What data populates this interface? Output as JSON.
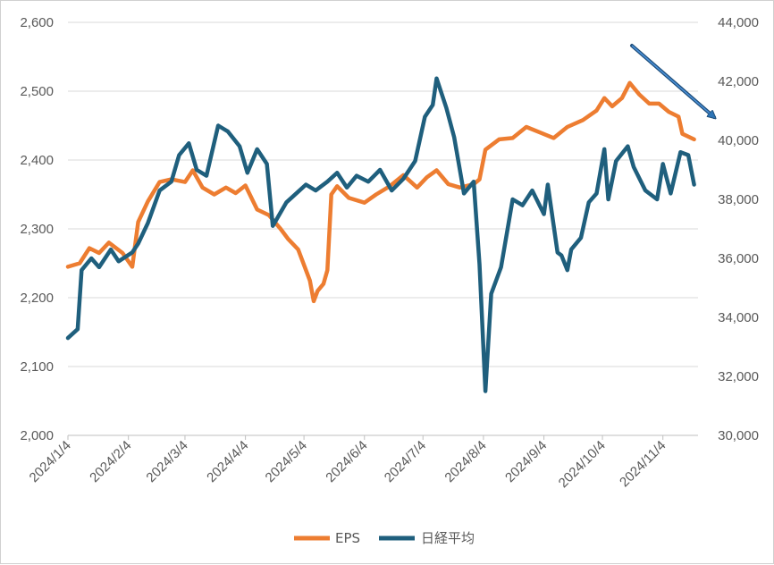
{
  "chart_data": {
    "type": "line",
    "title": "",
    "xlabel": "",
    "ylabel": "",
    "x_ticks": [
      "2024/1/4",
      "2024/2/4",
      "2024/3/4",
      "2024/4/4",
      "2024/5/4",
      "2024/6/4",
      "2024/7/4",
      "2024/8/4",
      "2024/9/4",
      "2024/10/4",
      "2024/11/4"
    ],
    "left_axis": {
      "min": 2000,
      "max": 2600,
      "ticks": [
        "2,000",
        "2,100",
        "2,200",
        "2,300",
        "2,400",
        "2,500",
        "2,600"
      ]
    },
    "right_axis": {
      "min": 30000,
      "max": 44000,
      "ticks": [
        "30,000",
        "32,000",
        "34,000",
        "36,000",
        "38,000",
        "40,000",
        "42,000",
        "44,000"
      ]
    },
    "grid": "horizontal",
    "legend_position": "bottom",
    "series": [
      {
        "name": "EPS",
        "axis": "left",
        "color": "#ED7D31",
        "points": [
          [
            "2024-01-04",
            2245
          ],
          [
            "2024-01-10",
            2250
          ],
          [
            "2024-01-15",
            2272
          ],
          [
            "2024-01-20",
            2265
          ],
          [
            "2024-01-25",
            2280
          ],
          [
            "2024-02-01",
            2265
          ],
          [
            "2024-02-06",
            2245
          ],
          [
            "2024-02-09",
            2310
          ],
          [
            "2024-02-14",
            2340
          ],
          [
            "2024-02-20",
            2368
          ],
          [
            "2024-02-26",
            2372
          ],
          [
            "2024-03-04",
            2368
          ],
          [
            "2024-03-08",
            2385
          ],
          [
            "2024-03-13",
            2360
          ],
          [
            "2024-03-19",
            2350
          ],
          [
            "2024-03-25",
            2360
          ],
          [
            "2024-03-30",
            2352
          ],
          [
            "2024-04-04",
            2363
          ],
          [
            "2024-04-10",
            2328
          ],
          [
            "2024-04-16",
            2320
          ],
          [
            "2024-04-22",
            2300
          ],
          [
            "2024-04-26",
            2285
          ],
          [
            "2024-05-01",
            2270
          ],
          [
            "2024-05-07",
            2225
          ],
          [
            "2024-05-09",
            2195
          ],
          [
            "2024-05-11",
            2210
          ],
          [
            "2024-05-14",
            2220
          ],
          [
            "2024-05-16",
            2240
          ],
          [
            "2024-05-18",
            2350
          ],
          [
            "2024-05-21",
            2362
          ],
          [
            "2024-05-27",
            2345
          ],
          [
            "2024-06-04",
            2338
          ],
          [
            "2024-06-10",
            2350
          ],
          [
            "2024-06-17",
            2362
          ],
          [
            "2024-06-24",
            2378
          ],
          [
            "2024-07-01",
            2360
          ],
          [
            "2024-07-06",
            2375
          ],
          [
            "2024-07-11",
            2385
          ],
          [
            "2024-07-17",
            2365
          ],
          [
            "2024-07-23",
            2360
          ],
          [
            "2024-07-30",
            2365
          ],
          [
            "2024-08-02",
            2372
          ],
          [
            "2024-08-05",
            2415
          ],
          [
            "2024-08-12",
            2430
          ],
          [
            "2024-08-19",
            2432
          ],
          [
            "2024-08-26",
            2448
          ],
          [
            "2024-09-02",
            2440
          ],
          [
            "2024-09-09",
            2432
          ],
          [
            "2024-09-16",
            2448
          ],
          [
            "2024-09-24",
            2458
          ],
          [
            "2024-10-01",
            2472
          ],
          [
            "2024-10-05",
            2490
          ],
          [
            "2024-10-09",
            2478
          ],
          [
            "2024-10-14",
            2490
          ],
          [
            "2024-10-18",
            2512
          ],
          [
            "2024-10-23",
            2495
          ],
          [
            "2024-10-28",
            2482
          ],
          [
            "2024-11-02",
            2482
          ],
          [
            "2024-11-07",
            2470
          ],
          [
            "2024-11-12",
            2463
          ],
          [
            "2024-11-14",
            2438
          ],
          [
            "2024-11-20",
            2430
          ]
        ]
      },
      {
        "name": "日経平均",
        "axis": "right",
        "color": "#1F5F7D",
        "points": [
          [
            "2024-01-04",
            33300
          ],
          [
            "2024-01-09",
            33600
          ],
          [
            "2024-01-11",
            35600
          ],
          [
            "2024-01-16",
            36000
          ],
          [
            "2024-01-20",
            35700
          ],
          [
            "2024-01-26",
            36300
          ],
          [
            "2024-01-30",
            35900
          ],
          [
            "2024-02-06",
            36200
          ],
          [
            "2024-02-09",
            36500
          ],
          [
            "2024-02-14",
            37200
          ],
          [
            "2024-02-20",
            38300
          ],
          [
            "2024-02-26",
            38600
          ],
          [
            "2024-03-01",
            39500
          ],
          [
            "2024-03-06",
            39900
          ],
          [
            "2024-03-10",
            39000
          ],
          [
            "2024-03-15",
            38800
          ],
          [
            "2024-03-21",
            40500
          ],
          [
            "2024-03-26",
            40300
          ],
          [
            "2024-04-01",
            39800
          ],
          [
            "2024-04-05",
            38900
          ],
          [
            "2024-04-10",
            39700
          ],
          [
            "2024-04-15",
            39200
          ],
          [
            "2024-04-18",
            37100
          ],
          [
            "2024-04-25",
            37900
          ],
          [
            "2024-04-30",
            38200
          ],
          [
            "2024-05-05",
            38500
          ],
          [
            "2024-05-10",
            38300
          ],
          [
            "2024-05-16",
            38600
          ],
          [
            "2024-05-21",
            38900
          ],
          [
            "2024-05-26",
            38400
          ],
          [
            "2024-05-31",
            38800
          ],
          [
            "2024-06-06",
            38600
          ],
          [
            "2024-06-12",
            39000
          ],
          [
            "2024-06-18",
            38300
          ],
          [
            "2024-06-24",
            38700
          ],
          [
            "2024-06-30",
            39300
          ],
          [
            "2024-07-05",
            40800
          ],
          [
            "2024-07-09",
            41200
          ],
          [
            "2024-07-11",
            42100
          ],
          [
            "2024-07-16",
            41100
          ],
          [
            "2024-07-20",
            40100
          ],
          [
            "2024-07-25",
            38200
          ],
          [
            "2024-07-30",
            38600
          ],
          [
            "2024-08-02",
            35800
          ],
          [
            "2024-08-05",
            31500
          ],
          [
            "2024-08-08",
            34800
          ],
          [
            "2024-08-13",
            35700
          ],
          [
            "2024-08-19",
            38000
          ],
          [
            "2024-08-24",
            37800
          ],
          [
            "2024-08-29",
            38300
          ],
          [
            "2024-09-04",
            37500
          ],
          [
            "2024-09-06",
            38500
          ],
          [
            "2024-09-11",
            36200
          ],
          [
            "2024-09-13",
            36100
          ],
          [
            "2024-09-16",
            35600
          ],
          [
            "2024-09-18",
            36300
          ],
          [
            "2024-09-23",
            36700
          ],
          [
            "2024-09-27",
            37900
          ],
          [
            "2024-10-01",
            38200
          ],
          [
            "2024-10-05",
            39700
          ],
          [
            "2024-10-07",
            38000
          ],
          [
            "2024-10-11",
            39300
          ],
          [
            "2024-10-17",
            39800
          ],
          [
            "2024-10-20",
            39100
          ],
          [
            "2024-10-26",
            38300
          ],
          [
            "2024-11-01",
            38000
          ],
          [
            "2024-11-04",
            39200
          ],
          [
            "2024-11-08",
            38200
          ],
          [
            "2024-11-13",
            39600
          ],
          [
            "2024-11-17",
            39500
          ],
          [
            "2024-11-20",
            38500
          ]
        ]
      }
    ],
    "annotations": [
      {
        "type": "arrow",
        "direction": "down-right",
        "color": "#1F4E79"
      }
    ]
  }
}
